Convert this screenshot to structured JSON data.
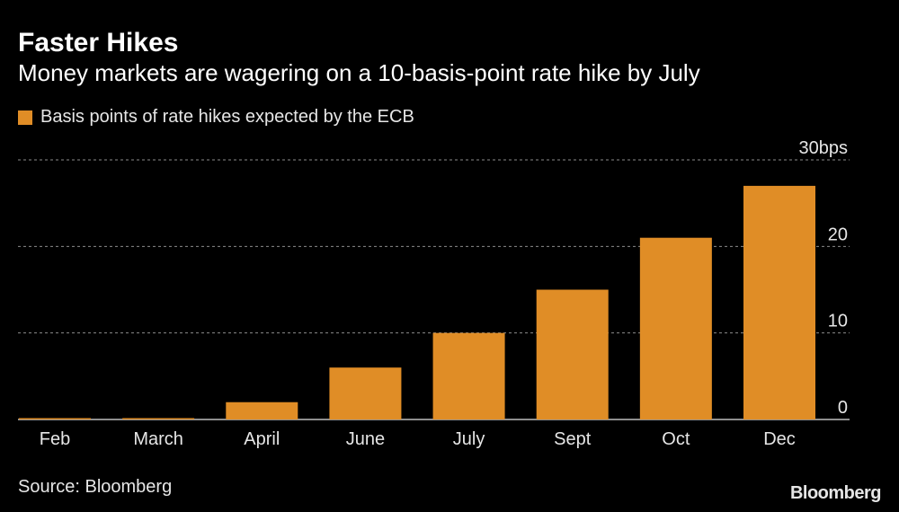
{
  "header": {
    "title": "Faster Hikes",
    "subtitle": "Money markets are wagering on a 10-basis-point rate hike by July"
  },
  "legend": {
    "label": "Basis points of rate hikes expected by the ECB"
  },
  "footer": {
    "source": "Source: Bloomberg",
    "brand": "Bloomberg"
  },
  "colors": {
    "background": "#000000",
    "bar": "#e08d26",
    "grid": "#8c8c8c",
    "text": "#e6e6e6"
  },
  "chart_data": {
    "type": "bar",
    "categories": [
      "Feb",
      "March",
      "April",
      "June",
      "July",
      "Sept",
      "Oct",
      "Dec"
    ],
    "series": [
      {
        "name": "Basis points of rate hikes expected by the ECB",
        "values": [
          0.1,
          0.1,
          2,
          6,
          10,
          15,
          21,
          27
        ]
      }
    ],
    "ylim": [
      0,
      30
    ],
    "yticks": [
      0,
      10,
      20,
      30
    ],
    "ytick_labels": [
      "0",
      "10",
      "20",
      "30bps"
    ],
    "grid": true,
    "y_axis_side": "right",
    "legend_position": "top-left"
  }
}
